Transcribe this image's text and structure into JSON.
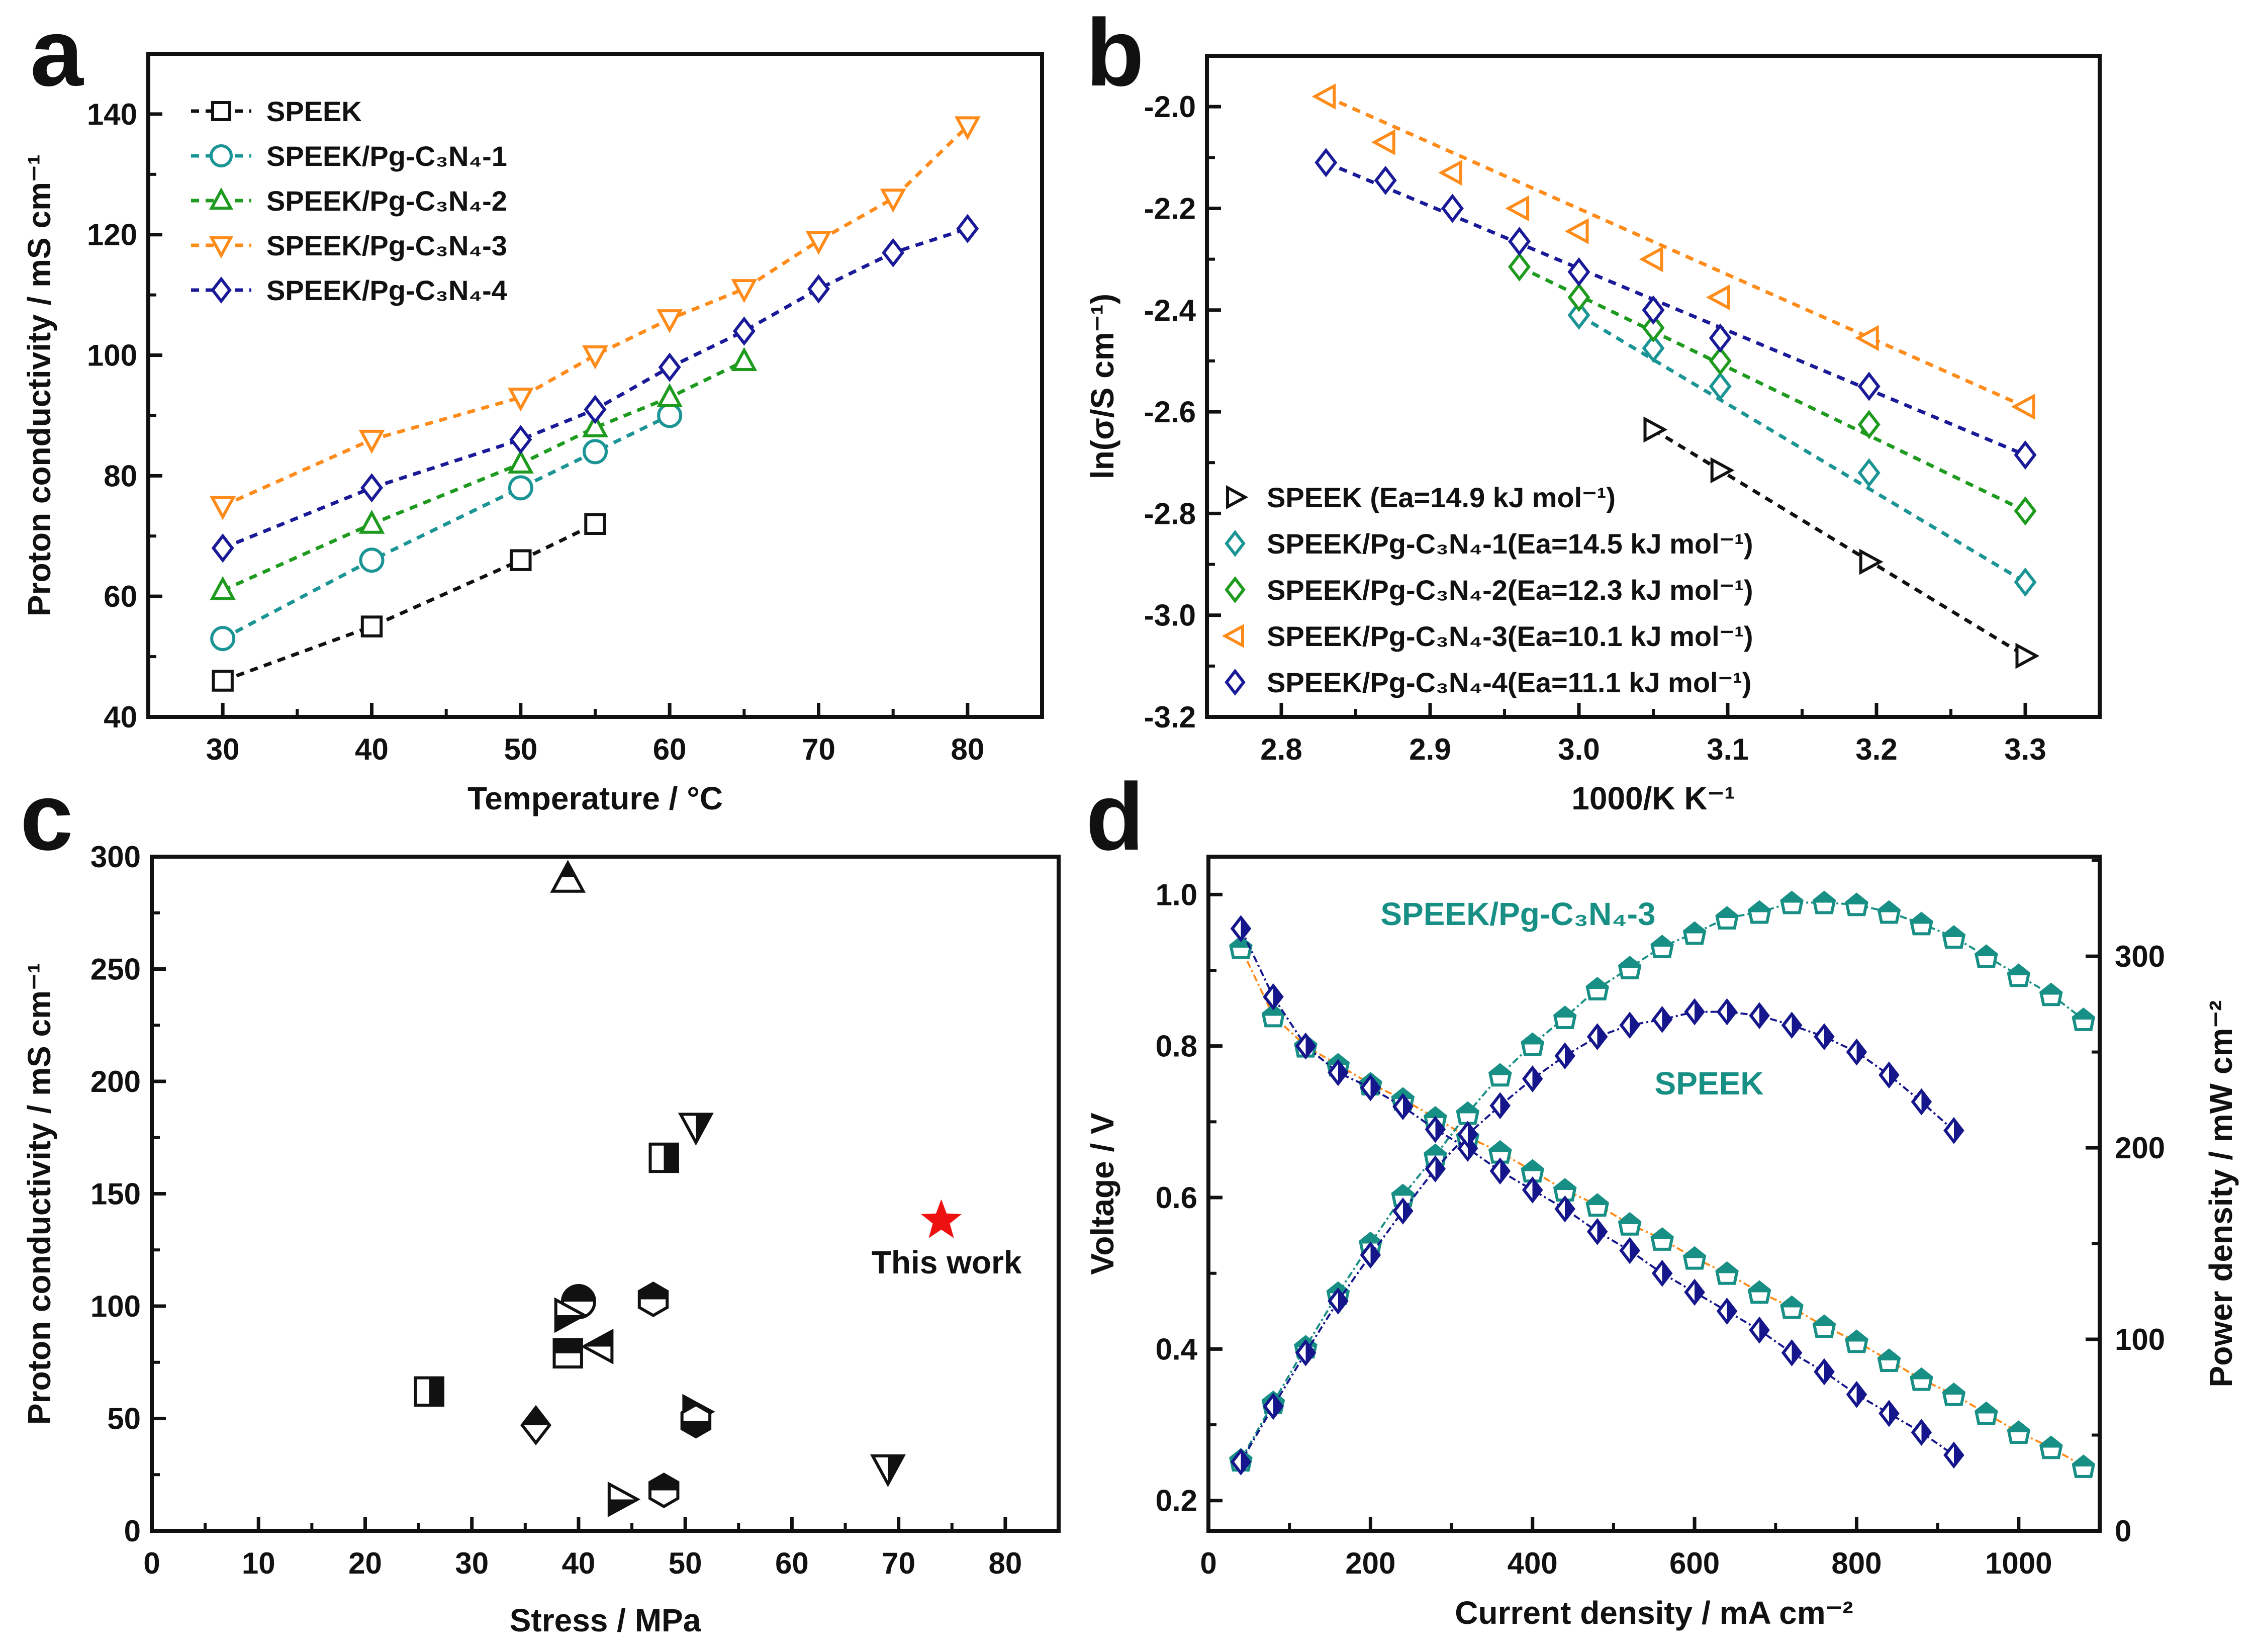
{
  "panels": {
    "a": "a",
    "b": "b",
    "c": "c",
    "d": "d"
  },
  "colors": {
    "black": "#111111",
    "teal": "#1a9494",
    "green": "#1e9b1e",
    "orange": "#ff8c1a",
    "navy": "#1a1a99",
    "red": "#ee1111",
    "d_teal": "#178f85",
    "d_navy": "#15158c"
  },
  "chart_data": [
    {
      "id": "a",
      "type": "line",
      "xlabel": "Temperature / °C",
      "ylabel": "Proton conductivity / mS cm⁻¹",
      "xlim": [
        25,
        85
      ],
      "ylim": [
        40,
        150
      ],
      "xticks": [
        30,
        40,
        50,
        60,
        70,
        80
      ],
      "yticks": [
        40,
        60,
        80,
        100,
        120,
        140
      ],
      "legend_position": "top-left",
      "series": [
        {
          "name": "SPEEK",
          "marker": "square",
          "color": "#111111",
          "x": [
            30,
            40,
            50,
            55
          ],
          "y": [
            46,
            55,
            66,
            72
          ]
        },
        {
          "name": "SPEEK/Pg-C₃N₄-1",
          "marker": "circle",
          "color": "#1a9494",
          "x": [
            30,
            40,
            50,
            55,
            60
          ],
          "y": [
            53,
            66,
            78,
            84,
            90
          ]
        },
        {
          "name": "SPEEK/Pg-C₃N₄-2",
          "marker": "tri-up",
          "color": "#1e9b1e",
          "x": [
            30,
            40,
            50,
            55,
            60,
            65
          ],
          "y": [
            61,
            72,
            82,
            88,
            93,
            99
          ]
        },
        {
          "name": "SPEEK/Pg-C₃N₄-3",
          "marker": "tri-down",
          "color": "#ff8c1a",
          "x": [
            30,
            40,
            50,
            55,
            60,
            65,
            70,
            75,
            80
          ],
          "y": [
            75,
            86,
            93,
            100,
            106,
            111,
            119,
            126,
            138
          ]
        },
        {
          "name": "SPEEK/Pg-C₃N₄-4",
          "marker": "diamond",
          "color": "#1a1a99",
          "x": [
            30,
            40,
            50,
            55,
            60,
            65,
            70,
            75,
            80
          ],
          "y": [
            68,
            78,
            86,
            91,
            98,
            104,
            111,
            117,
            121
          ]
        }
      ]
    },
    {
      "id": "b",
      "type": "scatter",
      "xlabel": "1000/K  K⁻¹",
      "ylabel": "ln(σ/S cm⁻¹)",
      "xlim": [
        2.75,
        3.35
      ],
      "ylim": [
        -3.2,
        -1.9
      ],
      "xticks": [
        "2.8",
        "2.9",
        "3.0",
        "3.1",
        "3.2",
        "3.3"
      ],
      "yticks": [
        "-2.0",
        "-2.2",
        "-2.4",
        "-2.6",
        "-2.8",
        "-3.0",
        "-3.2"
      ],
      "legend_position": "bottom-left",
      "series": [
        {
          "name": "SPEEK (Ea=14.9 kJ mol⁻¹)",
          "marker": "tri-right",
          "color": "#111111",
          "x": [
            3.05,
            3.095,
            3.195,
            3.3
          ],
          "y": [
            -2.635,
            -2.715,
            -2.895,
            -3.08
          ]
        },
        {
          "name": "SPEEK/Pg-C₃N₄-1(Ea=14.5 kJ mol⁻¹)",
          "marker": "diamond",
          "color": "#1a9494",
          "x": [
            3.0,
            3.05,
            3.095,
            3.195,
            3.3
          ],
          "y": [
            -2.41,
            -2.475,
            -2.55,
            -2.72,
            -2.935
          ]
        },
        {
          "name": "SPEEK/Pg-C₃N₄-2(Ea=12.3 kJ mol⁻¹)",
          "marker": "diamond",
          "color": "#1e9b1e",
          "x": [
            2.96,
            3.0,
            3.05,
            3.095,
            3.195,
            3.3
          ],
          "y": [
            -2.315,
            -2.375,
            -2.435,
            -2.5,
            -2.625,
            -2.795
          ]
        },
        {
          "name": "SPEEK/Pg-C₃N₄-3(Ea=10.1 kJ mol⁻¹)",
          "marker": "tri-left",
          "color": "#ff8c1a",
          "x": [
            2.83,
            2.87,
            2.915,
            2.96,
            3.0,
            3.05,
            3.095,
            3.195,
            3.3
          ],
          "y": [
            -1.98,
            -2.07,
            -2.13,
            -2.2,
            -2.245,
            -2.3,
            -2.375,
            -2.455,
            -2.59
          ]
        },
        {
          "name": "SPEEK/Pg-C₃N₄-4(Ea=11.1 kJ mol⁻¹)",
          "marker": "diamond",
          "color": "#1a1a99",
          "x": [
            2.83,
            2.87,
            2.915,
            2.96,
            3.0,
            3.05,
            3.095,
            3.195,
            3.3
          ],
          "y": [
            -2.11,
            -2.145,
            -2.2,
            -2.265,
            -2.325,
            -2.4,
            -2.455,
            -2.55,
            -2.685
          ]
        }
      ]
    },
    {
      "id": "c",
      "type": "scatter",
      "xlabel": "Stress / MPa",
      "ylabel": "Proton conductivity / mS cm⁻¹",
      "xlim": [
        0,
        85
      ],
      "ylim": [
        0,
        300
      ],
      "xticks": [
        0,
        10,
        20,
        30,
        40,
        50,
        60,
        70,
        80
      ],
      "yticks": [
        0,
        50,
        100,
        150,
        200,
        250,
        300
      ],
      "annotation": "This work",
      "points": [
        {
          "x": 39,
          "y": 290,
          "marker": "tri-up",
          "half": "top"
        },
        {
          "x": 51,
          "y": 180,
          "marker": "tri-down",
          "half": "right"
        },
        {
          "x": 48,
          "y": 166,
          "marker": "square",
          "half": "right"
        },
        {
          "x": 40,
          "y": 102,
          "marker": "circle",
          "half": "top"
        },
        {
          "x": 39,
          "y": 96,
          "marker": "tri-right",
          "half": "bottom"
        },
        {
          "x": 47,
          "y": 103,
          "marker": "hexagon",
          "half": "top"
        },
        {
          "x": 39,
          "y": 79,
          "marker": "square",
          "half": "top"
        },
        {
          "x": 42,
          "y": 82,
          "marker": "tri-left",
          "half": "top"
        },
        {
          "x": 26,
          "y": 62,
          "marker": "square",
          "half": "right"
        },
        {
          "x": 36,
          "y": 47,
          "marker": "diamond",
          "half": "top"
        },
        {
          "x": 51,
          "y": 53,
          "marker": "tri-right",
          "half": "top"
        },
        {
          "x": 51,
          "y": 49,
          "marker": "hexagon",
          "half": "bottom"
        },
        {
          "x": 48,
          "y": 18,
          "marker": "hexagon",
          "half": "top"
        },
        {
          "x": 44,
          "y": 14,
          "marker": "tri-right",
          "half": "bottom"
        },
        {
          "x": 69,
          "y": 28,
          "marker": "tri-down",
          "half": "right"
        },
        {
          "x": 74,
          "y": 138,
          "marker": "star",
          "half": "none",
          "color": "#ee1111"
        }
      ]
    },
    {
      "id": "d",
      "type": "line",
      "xlabel": "Current density / mA cm⁻²",
      "ylabel": "Voltage / V",
      "y2label": "Power density  / mW cm⁻²",
      "xlim": [
        0,
        1100
      ],
      "ylim": [
        0.16,
        1.05
      ],
      "y2lim": [
        0,
        352
      ],
      "xticks": [
        0,
        200,
        400,
        600,
        800,
        1000
      ],
      "yticks": [
        "0.2",
        "0.4",
        "0.6",
        "0.8",
        "1.0"
      ],
      "y2ticks": [
        0,
        100,
        200,
        300
      ],
      "annotations": [
        "SPEEK/Pg-C₃N₄-3",
        "SPEEK"
      ],
      "series": [
        {
          "name": "SPEEK/Pg-C₃N₄-3 voltage",
          "axis": "left",
          "marker": "pentagon",
          "color": "#178f85",
          "line": "#ff8c1a",
          "x": [
            40,
            80,
            120,
            160,
            200,
            240,
            280,
            320,
            360,
            400,
            440,
            480,
            520,
            560,
            600,
            640,
            680,
            720,
            760,
            800,
            840,
            880,
            920,
            960,
            1000,
            1040,
            1080
          ],
          "y": [
            0.93,
            0.84,
            0.8,
            0.775,
            0.75,
            0.73,
            0.705,
            0.68,
            0.66,
            0.635,
            0.61,
            0.59,
            0.565,
            0.545,
            0.52,
            0.5,
            0.475,
            0.455,
            0.43,
            0.41,
            0.385,
            0.36,
            0.34,
            0.315,
            0.29,
            0.27,
            0.245
          ]
        },
        {
          "name": "SPEEK/Pg-C₃N₄-3 power",
          "axis": "right",
          "marker": "pentagon",
          "color": "#178f85",
          "line": "#178f85",
          "x": [
            40,
            80,
            120,
            160,
            200,
            240,
            280,
            320,
            360,
            400,
            440,
            480,
            520,
            560,
            600,
            640,
            680,
            720,
            760,
            800,
            840,
            880,
            920,
            960,
            1000,
            1040,
            1080
          ],
          "y": [
            37,
            67,
            96,
            124,
            150,
            175,
            196,
            218,
            238,
            254,
            268,
            283,
            294,
            305,
            312,
            320,
            323,
            328,
            328,
            327,
            323,
            317,
            310,
            300,
            290,
            280,
            267
          ]
        },
        {
          "name": "SPEEK voltage",
          "axis": "left",
          "marker": "diamond-half",
          "color": "#15158c",
          "line": "#15158c",
          "x": [
            40,
            80,
            120,
            160,
            200,
            240,
            280,
            320,
            360,
            400,
            440,
            480,
            520,
            560,
            600,
            640,
            680,
            720,
            760,
            800,
            840,
            880,
            920
          ],
          "y": [
            0.955,
            0.865,
            0.8,
            0.765,
            0.745,
            0.72,
            0.69,
            0.665,
            0.635,
            0.61,
            0.585,
            0.555,
            0.53,
            0.5,
            0.475,
            0.45,
            0.425,
            0.395,
            0.37,
            0.34,
            0.315,
            0.29,
            0.26
          ]
        },
        {
          "name": "SPEEK power",
          "axis": "right",
          "marker": "diamond-half",
          "color": "#15158c",
          "line": "#15158c",
          "x": [
            40,
            80,
            120,
            160,
            200,
            240,
            280,
            320,
            360,
            400,
            440,
            480,
            520,
            560,
            600,
            640,
            680,
            720,
            760,
            800,
            840,
            880,
            920
          ],
          "y": [
            36,
            65,
            93,
            120,
            144,
            167,
            189,
            207,
            222,
            236,
            248,
            258,
            264,
            267,
            271,
            271,
            269,
            264,
            258,
            250,
            238,
            224,
            209
          ]
        }
      ]
    }
  ]
}
